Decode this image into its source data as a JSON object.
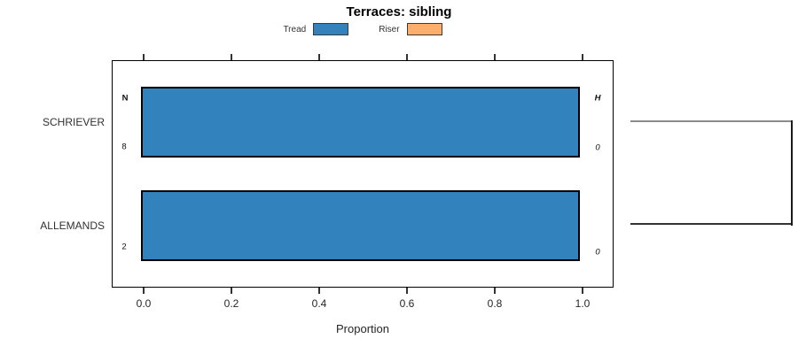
{
  "title": "Terraces: sibling",
  "legend": {
    "items": [
      {
        "label": "Tread",
        "color": "#3182bd"
      },
      {
        "label": "Riser",
        "color": "#fdae6b"
      }
    ]
  },
  "axis": {
    "xlabel": "Proportion",
    "tick_labels": [
      "0.0",
      "0.2",
      "0.4",
      "0.6",
      "0.8",
      "1.0"
    ]
  },
  "column_headers": {
    "n": "N",
    "h": "H"
  },
  "rows": [
    {
      "category": "SCHRIEVER",
      "n": "8",
      "h": "0"
    },
    {
      "category": "ALLEMANDS",
      "n": "2",
      "h": "0"
    }
  ],
  "chart_data": {
    "type": "bar",
    "orientation": "horizontal",
    "title": "Terraces: sibling",
    "categories": [
      "SCHRIEVER",
      "ALLEMANDS"
    ],
    "series": [
      {
        "name": "Tread",
        "color": "#3182bd",
        "values": [
          1.0,
          1.0
        ]
      },
      {
        "name": "Riser",
        "color": "#fdae6b",
        "values": [
          0.0,
          0.0
        ]
      }
    ],
    "annotations": {
      "N": [
        8,
        2
      ],
      "H": [
        0,
        0
      ]
    },
    "xlabel": "Proportion",
    "xlim": [
      0,
      1.0
    ],
    "xticks": [
      0.0,
      0.2,
      0.4,
      0.6,
      0.8,
      1.0
    ],
    "legend_position": "top",
    "grid": false,
    "right_bracket_dendrogram": true,
    "colors": {
      "bar_border": "#000000",
      "bracket_gray": "#8c8c8c",
      "bracket_dark": "#333333"
    }
  }
}
